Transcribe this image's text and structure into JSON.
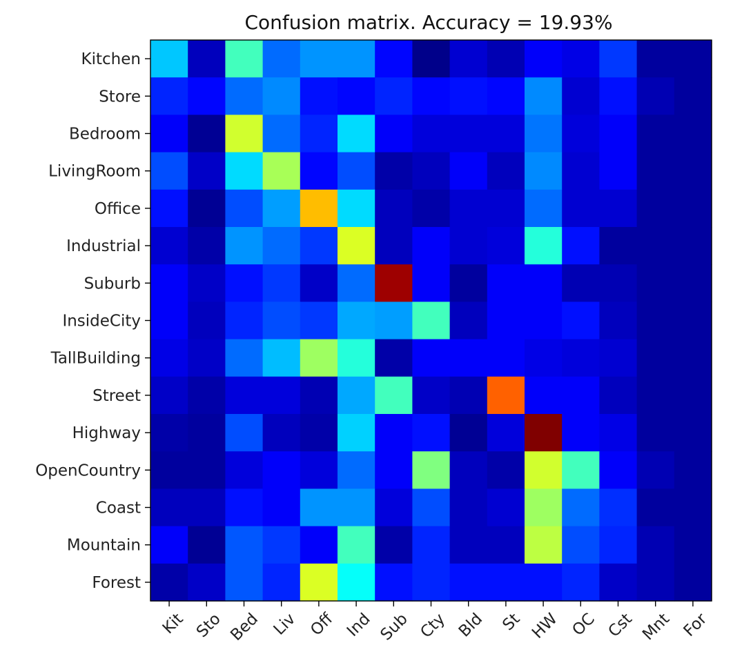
{
  "chart_data": {
    "type": "heatmap",
    "title": "Confusion matrix. Accuracy = 19.93%",
    "colormap": "jet",
    "value_range": [
      0,
      1
    ],
    "y_labels": [
      "Kitchen",
      "Store",
      "Bedroom",
      "LivingRoom",
      "Office",
      "Industrial",
      "Suburb",
      "InsideCity",
      "TallBuilding",
      "Street",
      "Highway",
      "OpenCountry",
      "Coast",
      "Mountain",
      "Forest"
    ],
    "x_labels": [
      "Kit",
      "Sto",
      "Bed",
      "Liv",
      "Off",
      "Ind",
      "Sub",
      "Cty",
      "Bld",
      "St",
      "HW",
      "OC",
      "Cst",
      "Mnt",
      "For"
    ],
    "matrix": [
      [
        0.32,
        0.06,
        0.44,
        0.23,
        0.27,
        0.27,
        0.13,
        0.01,
        0.08,
        0.05,
        0.12,
        0.1,
        0.18,
        0.03,
        0.03
      ],
      [
        0.16,
        0.13,
        0.23,
        0.26,
        0.14,
        0.13,
        0.16,
        0.13,
        0.14,
        0.13,
        0.26,
        0.08,
        0.14,
        0.05,
        0.03
      ],
      [
        0.12,
        0.02,
        0.58,
        0.23,
        0.16,
        0.34,
        0.12,
        0.09,
        0.09,
        0.09,
        0.24,
        0.09,
        0.12,
        0.03,
        0.03
      ],
      [
        0.2,
        0.07,
        0.34,
        0.54,
        0.13,
        0.2,
        0.04,
        0.06,
        0.12,
        0.06,
        0.26,
        0.08,
        0.12,
        0.03,
        0.03
      ],
      [
        0.14,
        0.02,
        0.2,
        0.28,
        0.69,
        0.34,
        0.06,
        0.04,
        0.08,
        0.08,
        0.23,
        0.08,
        0.08,
        0.03,
        0.03
      ],
      [
        0.08,
        0.04,
        0.27,
        0.23,
        0.18,
        0.59,
        0.06,
        0.12,
        0.08,
        0.09,
        0.41,
        0.14,
        0.03,
        0.03,
        0.03
      ],
      [
        0.12,
        0.07,
        0.14,
        0.18,
        0.07,
        0.23,
        0.97,
        0.12,
        0.03,
        0.12,
        0.12,
        0.05,
        0.05,
        0.03,
        0.03
      ],
      [
        0.12,
        0.06,
        0.16,
        0.2,
        0.18,
        0.29,
        0.28,
        0.44,
        0.06,
        0.12,
        0.12,
        0.14,
        0.06,
        0.03,
        0.03
      ],
      [
        0.1,
        0.07,
        0.23,
        0.31,
        0.53,
        0.41,
        0.04,
        0.12,
        0.12,
        0.12,
        0.1,
        0.09,
        0.08,
        0.03,
        0.03
      ],
      [
        0.07,
        0.04,
        0.09,
        0.09,
        0.05,
        0.29,
        0.44,
        0.07,
        0.05,
        0.78,
        0.12,
        0.12,
        0.06,
        0.03,
        0.03
      ],
      [
        0.04,
        0.03,
        0.2,
        0.06,
        0.04,
        0.33,
        0.12,
        0.14,
        0.02,
        0.09,
        1.0,
        0.12,
        0.1,
        0.03,
        0.03
      ],
      [
        0.03,
        0.03,
        0.09,
        0.12,
        0.09,
        0.23,
        0.12,
        0.5,
        0.06,
        0.04,
        0.58,
        0.44,
        0.12,
        0.05,
        0.03
      ],
      [
        0.06,
        0.06,
        0.14,
        0.12,
        0.27,
        0.27,
        0.09,
        0.2,
        0.06,
        0.08,
        0.53,
        0.23,
        0.17,
        0.03,
        0.03
      ],
      [
        0.12,
        0.02,
        0.21,
        0.18,
        0.12,
        0.44,
        0.04,
        0.16,
        0.06,
        0.06,
        0.56,
        0.2,
        0.16,
        0.05,
        0.03
      ],
      [
        0.04,
        0.07,
        0.21,
        0.16,
        0.59,
        0.38,
        0.14,
        0.16,
        0.14,
        0.14,
        0.14,
        0.16,
        0.07,
        0.05,
        0.03
      ]
    ],
    "grid": false,
    "colorbar": false
  }
}
